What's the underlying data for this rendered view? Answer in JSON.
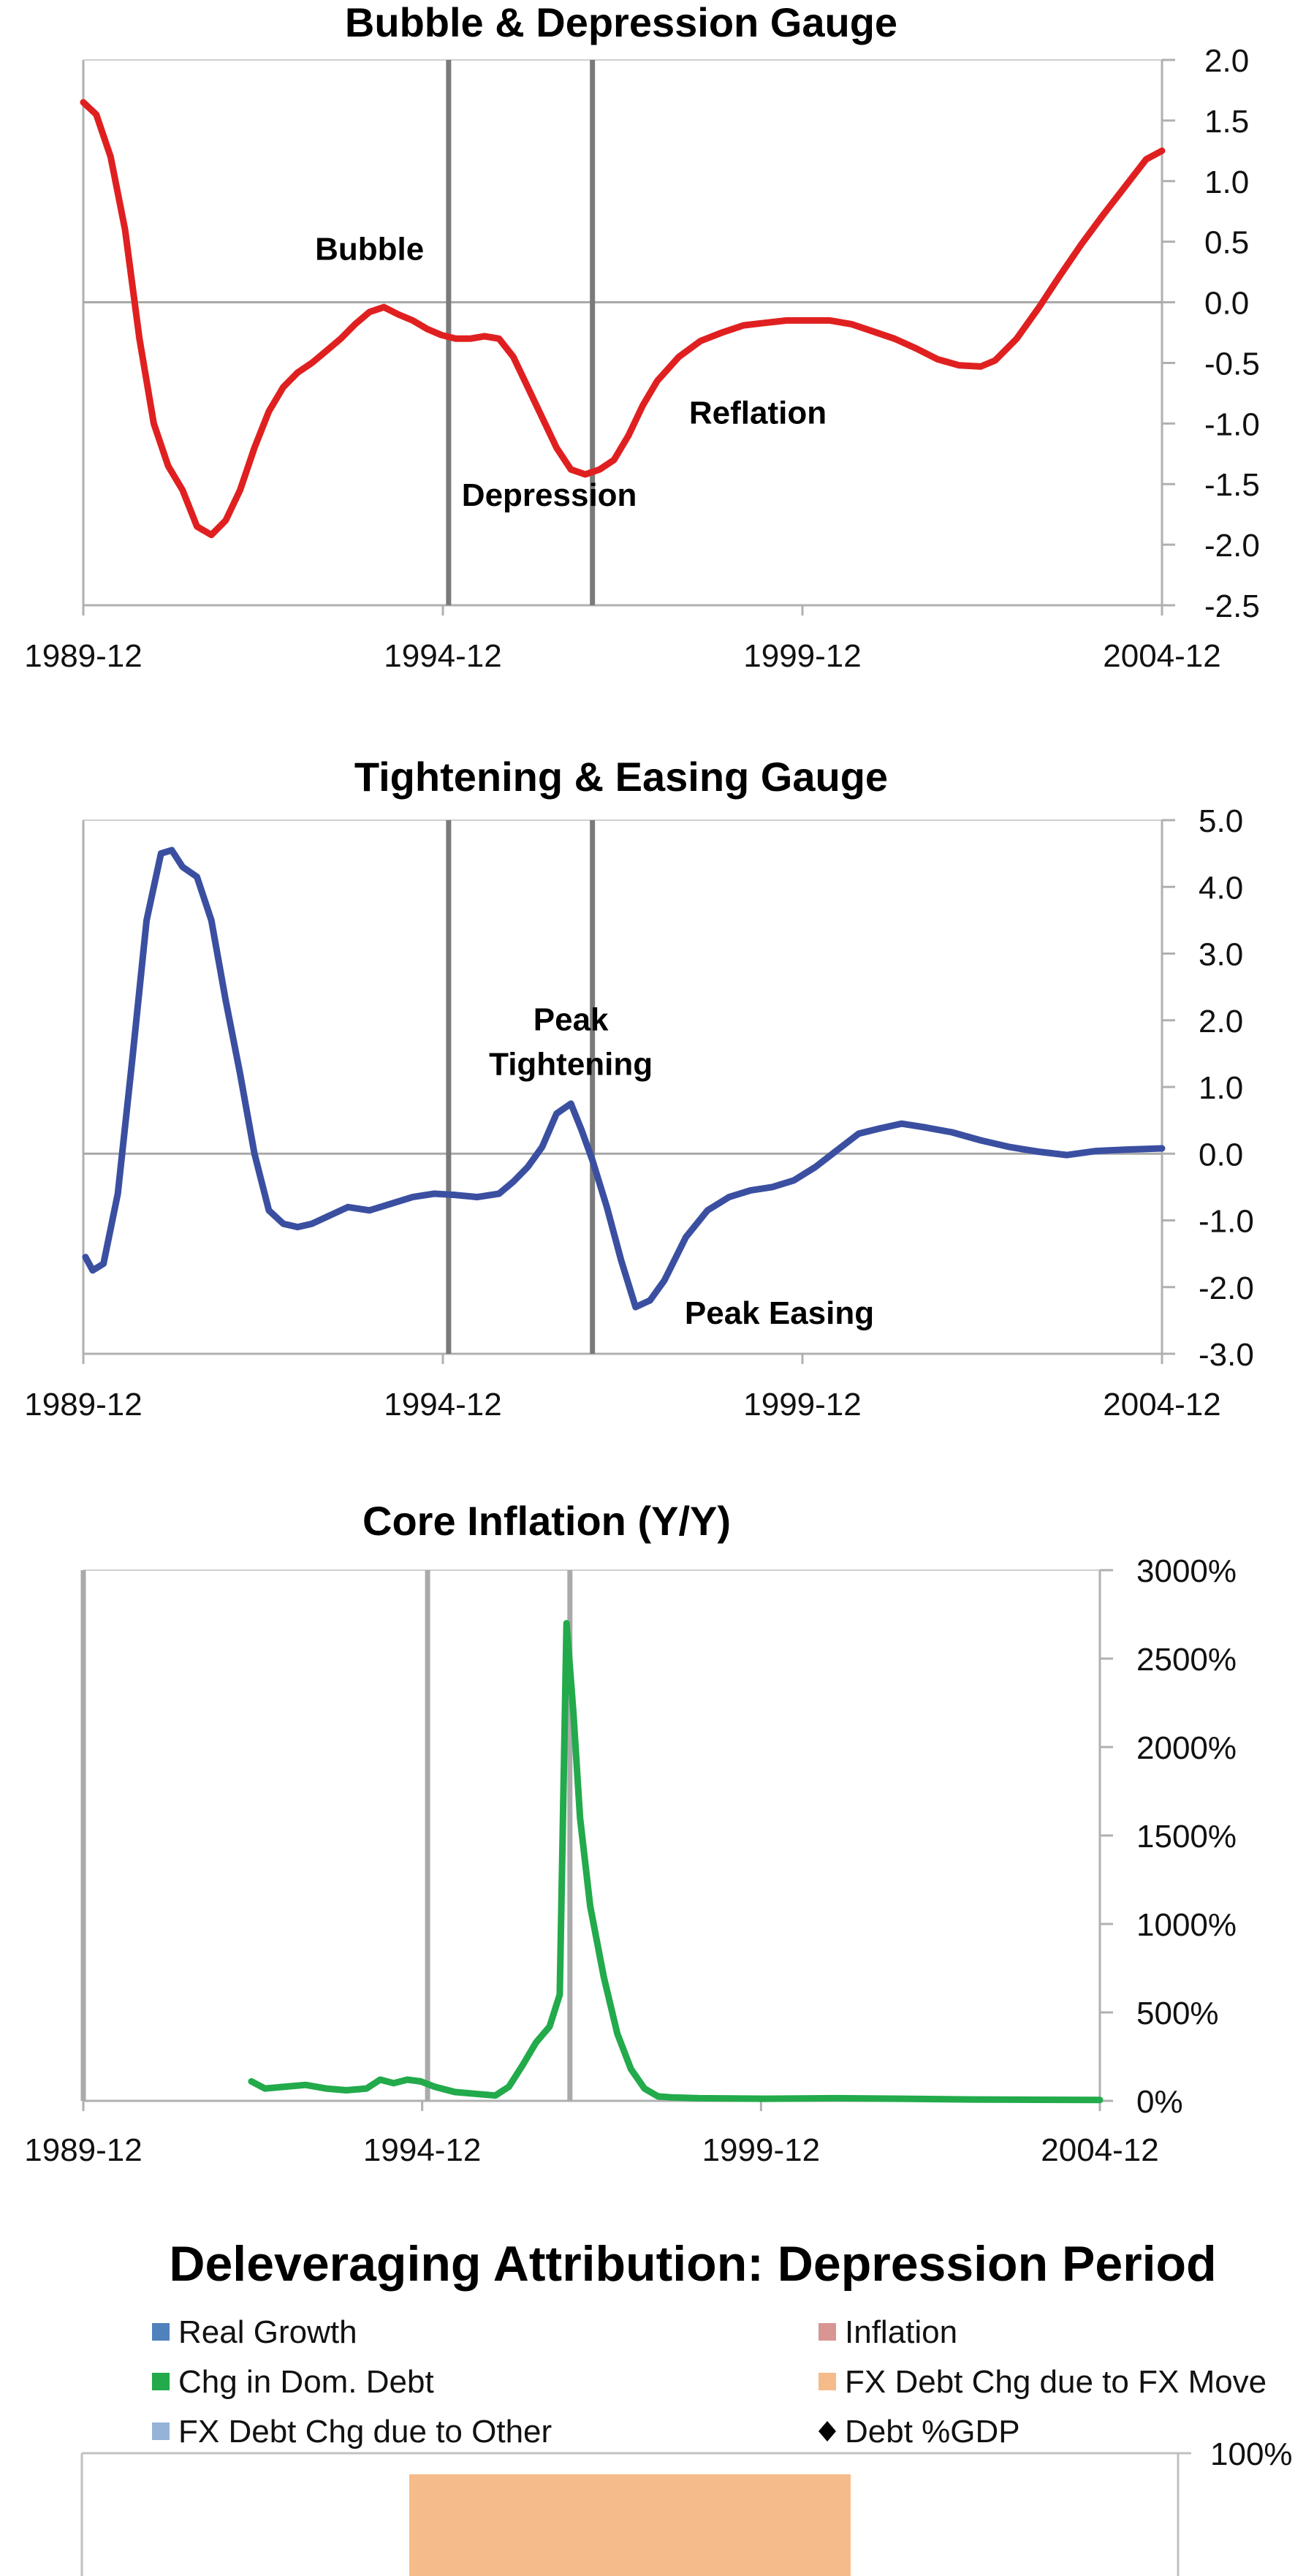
{
  "chart_data": [
    {
      "type": "line",
      "title": "Bubble & Depression Gauge",
      "x_ticks": [
        "1989-12",
        "1994-12",
        "1999-12",
        "2004-12"
      ],
      "y_ticks": [
        "2.0",
        "1.5",
        "1.0",
        "0.5",
        "0.0",
        "-0.5",
        "-1.0",
        "-1.5",
        "-2.0",
        "-2.5"
      ],
      "ylim": [
        -2.5,
        2.0
      ],
      "xlim": [
        1989.92,
        2004.92
      ],
      "grid": false,
      "zero_line": true,
      "vertical_markers": [
        1995.0,
        1997.0
      ],
      "annotations": [
        {
          "text": "Bubble",
          "x": 1993.9,
          "y": 0.35
        },
        {
          "text": "Depression",
          "x": 1996.4,
          "y": -1.68
        },
        {
          "text": "Reflation",
          "x": 1999.3,
          "y": -1.0
        }
      ],
      "series": [
        {
          "color": "#e02020",
          "x": [
            1989.92,
            1990.1,
            1990.3,
            1990.5,
            1990.7,
            1990.9,
            1991.1,
            1991.3,
            1991.5,
            1991.7,
            1991.9,
            1992.1,
            1992.3,
            1992.5,
            1992.7,
            1992.9,
            1993.1,
            1993.3,
            1993.5,
            1993.7,
            1993.9,
            1994.1,
            1994.3,
            1994.5,
            1994.7,
            1994.9,
            1995.1,
            1995.3,
            1995.5,
            1995.7,
            1995.9,
            1996.1,
            1996.3,
            1996.5,
            1996.7,
            1996.9,
            1997.1,
            1997.3,
            1997.5,
            1997.7,
            1997.9,
            1998.2,
            1998.5,
            1998.8,
            1999.1,
            1999.4,
            1999.7,
            2000.0,
            2000.3,
            2000.6,
            2000.9,
            2001.2,
            2001.5,
            2001.8,
            2002.1,
            2002.4,
            2002.6,
            2002.9,
            2003.2,
            2003.5,
            2003.8,
            2004.1,
            2004.4,
            2004.7,
            2004.92
          ],
          "y": [
            1.65,
            1.55,
            1.2,
            0.6,
            -0.3,
            -1.0,
            -1.35,
            -1.55,
            -1.85,
            -1.92,
            -1.8,
            -1.55,
            -1.2,
            -0.9,
            -0.7,
            -0.58,
            -0.5,
            -0.4,
            -0.3,
            -0.18,
            -0.08,
            -0.04,
            -0.1,
            -0.15,
            -0.22,
            -0.27,
            -0.3,
            -0.3,
            -0.28,
            -0.3,
            -0.45,
            -0.7,
            -0.95,
            -1.2,
            -1.38,
            -1.42,
            -1.38,
            -1.3,
            -1.1,
            -0.85,
            -0.65,
            -0.45,
            -0.32,
            -0.25,
            -0.19,
            -0.17,
            -0.15,
            -0.15,
            -0.15,
            -0.18,
            -0.24,
            -0.3,
            -0.38,
            -0.47,
            -0.52,
            -0.53,
            -0.48,
            -0.3,
            -0.05,
            0.22,
            0.48,
            0.72,
            0.95,
            1.18,
            1.25
          ]
        }
      ]
    },
    {
      "type": "line",
      "title": "Tightening & Easing Gauge",
      "x_ticks": [
        "1989-12",
        "1994-12",
        "1999-12",
        "2004-12"
      ],
      "y_ticks": [
        "5.0",
        "4.0",
        "3.0",
        "2.0",
        "1.0",
        "0.0",
        "-1.0",
        "-2.0",
        "-3.0"
      ],
      "ylim": [
        -3.0,
        5.0
      ],
      "xlim": [
        1989.92,
        2004.92
      ],
      "grid": false,
      "zero_line": true,
      "vertical_markers": [
        1995.0,
        1997.0
      ],
      "annotations": [
        {
          "text": "Peak",
          "x": 1996.7,
          "y": 1.85
        },
        {
          "text": "Tightening",
          "x": 1996.7,
          "y": 1.18
        },
        {
          "text": "Peak Easing",
          "x": 1999.6,
          "y": -2.55
        }
      ],
      "series": [
        {
          "color": "#3b4fa1",
          "x": [
            1989.95,
            1990.05,
            1990.2,
            1990.4,
            1990.6,
            1990.8,
            1991.0,
            1991.15,
            1991.3,
            1991.5,
            1991.7,
            1991.9,
            1992.1,
            1992.3,
            1992.5,
            1992.7,
            1992.9,
            1993.1,
            1993.3,
            1993.6,
            1993.9,
            1994.2,
            1994.5,
            1994.8,
            1995.1,
            1995.4,
            1995.7,
            1995.9,
            1996.1,
            1996.3,
            1996.5,
            1996.7,
            1996.85,
            1997.0,
            1997.2,
            1997.4,
            1997.6,
            1997.8,
            1998.0,
            1998.3,
            1998.6,
            1998.9,
            1999.2,
            1999.5,
            1999.8,
            2000.1,
            2000.4,
            2000.7,
            2001.0,
            2001.3,
            2001.6,
            2002.0,
            2002.4,
            2002.8,
            2003.2,
            2003.6,
            2004.0,
            2004.4,
            2004.92
          ],
          "y": [
            -1.55,
            -1.75,
            -1.65,
            -0.6,
            1.4,
            3.5,
            4.5,
            4.55,
            4.3,
            4.15,
            3.5,
            2.3,
            1.2,
            0.0,
            -0.85,
            -1.05,
            -1.1,
            -1.05,
            -0.95,
            -0.8,
            -0.85,
            -0.75,
            -0.65,
            -0.6,
            -0.62,
            -0.65,
            -0.6,
            -0.42,
            -0.2,
            0.1,
            0.6,
            0.75,
            0.35,
            -0.1,
            -0.8,
            -1.6,
            -2.3,
            -2.2,
            -1.9,
            -1.25,
            -0.85,
            -0.65,
            -0.55,
            -0.5,
            -0.4,
            -0.2,
            0.05,
            0.3,
            0.38,
            0.45,
            0.4,
            0.32,
            0.2,
            0.1,
            0.03,
            -0.02,
            0.04,
            0.06,
            0.08
          ]
        }
      ]
    },
    {
      "type": "line",
      "title": "Core Inflation (Y/Y)",
      "x_ticks": [
        "1989-12",
        "1994-12",
        "1999-12",
        "2004-12"
      ],
      "y_ticks": [
        "3000%",
        "2500%",
        "2000%",
        "1500%",
        "1000%",
        "500%",
        "0%"
      ],
      "ylim": [
        0,
        3000
      ],
      "xlim": [
        1989.92,
        2004.92
      ],
      "grid": false,
      "vertical_markers": [
        1989.92,
        1995.0,
        1997.1
      ],
      "series": [
        {
          "color": "#22aa4b",
          "x": [
            1992.4,
            1992.6,
            1992.9,
            1993.2,
            1993.5,
            1993.8,
            1994.1,
            1994.3,
            1994.5,
            1994.7,
            1994.9,
            1995.1,
            1995.4,
            1995.7,
            1996.0,
            1996.2,
            1996.4,
            1996.6,
            1996.8,
            1996.95,
            1997.05,
            1997.15,
            1997.25,
            1997.4,
            1997.6,
            1997.8,
            1998.0,
            1998.2,
            1998.4,
            1998.6,
            1999.0,
            2000.0,
            2001.0,
            2002.0,
            2003.0,
            2004.0,
            2004.92
          ],
          "y": [
            110,
            70,
            80,
            90,
            70,
            60,
            70,
            120,
            100,
            120,
            110,
            80,
            50,
            40,
            30,
            80,
            200,
            330,
            420,
            600,
            2700,
            2200,
            1600,
            1100,
            700,
            380,
            180,
            70,
            25,
            20,
            15,
            12,
            15,
            12,
            8,
            6,
            5
          ]
        }
      ]
    },
    {
      "type": "bar",
      "title": "Deleveraging Attribution: Depression Period",
      "y_ticks": [
        "100%"
      ],
      "legend": [
        {
          "label": "Real Growth",
          "color": "#4f81bd",
          "marker": "square"
        },
        {
          "label": "Inflation",
          "color": "#d99594",
          "marker": "square"
        },
        {
          "label": "Chg in Dom. Debt",
          "color": "#22aa4b",
          "marker": "square"
        },
        {
          "label": "FX Debt Chg due to FX Move",
          "color": "#f6bb8a",
          "marker": "square"
        },
        {
          "label": "FX Debt Chg due to Other",
          "color": "#95b3d7",
          "marker": "square"
        },
        {
          "label": "Debt %GDP",
          "color": "#000000",
          "marker": "diamond"
        }
      ],
      "categories": [
        ""
      ],
      "series": [
        {
          "name": "FX Debt Chg due to FX Move",
          "color": "#f6bb8a",
          "values": [
            96
          ]
        }
      ],
      "ylim": [
        0,
        100
      ]
    }
  ]
}
